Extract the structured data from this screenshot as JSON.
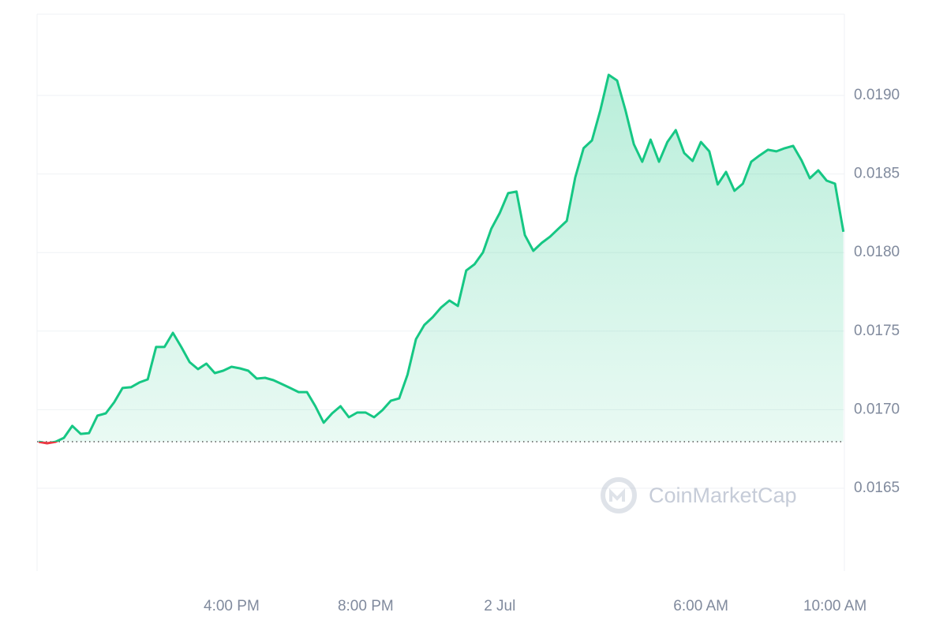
{
  "chart_data": {
    "type": "line",
    "x": [
      10.25,
      10.5,
      10.75,
      11,
      11.25,
      11.5,
      11.75,
      12,
      12.25,
      12.5,
      12.75,
      13,
      13.25,
      13.5,
      13.75,
      14,
      14.25,
      14.5,
      14.75,
      15,
      15.25,
      15.5,
      15.75,
      16,
      16.25,
      16.5,
      16.75,
      17,
      17.25,
      17.5,
      17.75,
      18,
      18.25,
      18.5,
      18.75,
      19,
      19.25,
      19.5,
      19.75,
      20,
      20.25,
      20.5,
      20.75,
      21,
      21.25,
      21.5,
      21.75,
      22,
      22.25,
      22.5,
      22.75,
      23,
      23.25,
      23.5,
      23.75,
      24,
      24.25,
      24.5,
      24.75,
      25,
      25.25,
      25.5,
      25.75,
      26,
      26.25,
      26.5,
      26.75,
      27,
      27.25,
      27.5,
      27.75,
      28,
      28.25,
      28.5,
      28.75,
      29,
      29.25,
      29.5,
      29.75,
      30,
      30.25,
      30.5,
      30.75,
      31,
      31.25,
      31.5,
      31.75,
      32,
      32.25,
      32.5,
      32.75,
      33,
      33.25,
      33.5,
      33.75,
      34,
      34.25
    ],
    "series": [
      {
        "color": "#16c784",
        "values": [
          0.016796,
          0.016786,
          0.016796,
          0.016821,
          0.016897,
          0.016846,
          0.016851,
          0.016962,
          0.016977,
          0.017047,
          0.017138,
          0.017143,
          0.017173,
          0.017193,
          0.017399,
          0.017399,
          0.017489,
          0.017399,
          0.017303,
          0.017258,
          0.017293,
          0.017233,
          0.017248,
          0.017273,
          0.017263,
          0.017248,
          0.017198,
          0.017203,
          0.017188,
          0.017163,
          0.017138,
          0.017112,
          0.017112,
          0.017022,
          0.016917,
          0.016977,
          0.017022,
          0.016952,
          0.016982,
          0.016982,
          0.016952,
          0.016997,
          0.017057,
          0.017072,
          0.017223,
          0.017449,
          0.017539,
          0.017589,
          0.01765,
          0.017695,
          0.01766,
          0.017886,
          0.017926,
          0.018001,
          0.018152,
          0.018252,
          0.018378,
          0.018388,
          0.018111,
          0.018011,
          0.018061,
          0.018101,
          0.018152,
          0.018202,
          0.018478,
          0.018664,
          0.018714,
          0.018905,
          0.019131,
          0.019095,
          0.018905,
          0.018689,
          0.018578,
          0.018719,
          0.018578,
          0.018704,
          0.018779,
          0.018634,
          0.018583,
          0.018704,
          0.018644,
          0.018433,
          0.018513,
          0.018393,
          0.018438,
          0.018578,
          0.018618,
          0.018654,
          0.018644,
          0.018664,
          0.018679,
          0.018588,
          0.018473,
          0.018523,
          0.018458,
          0.018438,
          0.018132
        ]
      }
    ],
    "down_color": "#ea3943",
    "reference_value": 0.016796,
    "xlim": [
      10.2,
      34.28
    ],
    "xticks": [
      {
        "value": 16,
        "label": "4:00 PM"
      },
      {
        "value": 20,
        "label": "8:00 PM"
      },
      {
        "value": 24,
        "label": "2 Jul"
      },
      {
        "value": 30,
        "label": "6:00 AM"
      },
      {
        "value": 34,
        "label": "10:00 AM"
      }
    ],
    "ylim": [
      0.015973,
      0.019517
    ],
    "yticks": [
      0.0165,
      {
        "value": 0.017,
        "label": "0.0170"
      },
      0.0175,
      {
        "value": 0.018,
        "label": "0.0180"
      },
      0.0185,
      {
        "value": 0.019,
        "label": "0.0190"
      }
    ],
    "grid": true,
    "watermark": "CoinMarketCap"
  }
}
